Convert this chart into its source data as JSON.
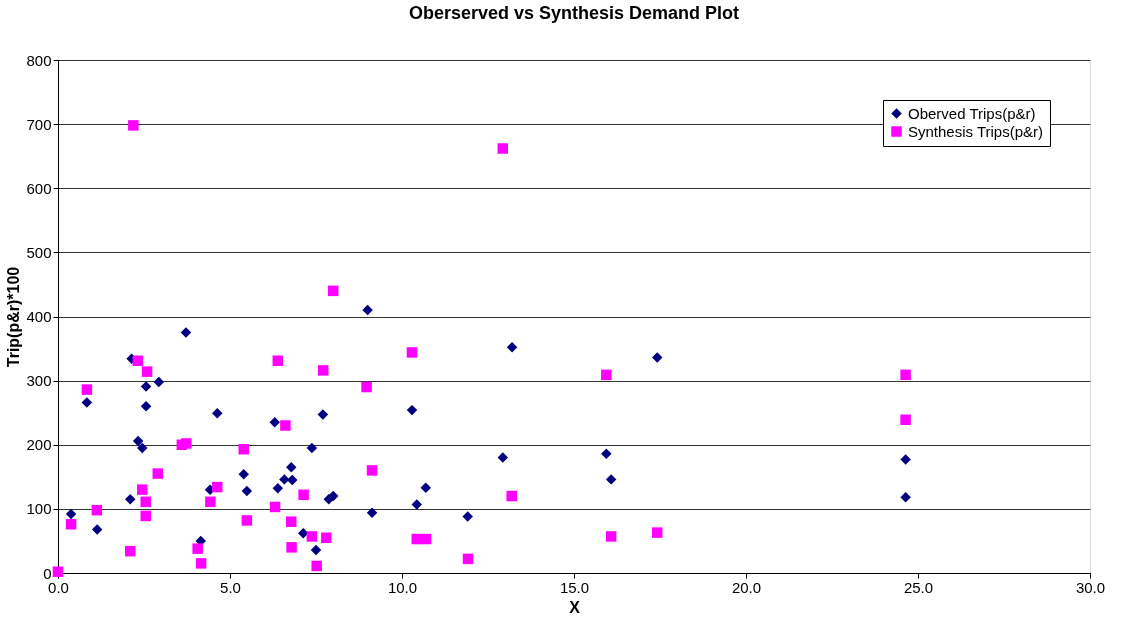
{
  "chart_data": {
    "type": "scatter",
    "title": "Oberserved vs Synthesis Demand Plot",
    "xlabel": "X",
    "ylabel": "Trip(p&r)*100",
    "xlim": [
      0,
      30
    ],
    "xticks": [
      {
        "value": 0,
        "label": "0.0"
      },
      {
        "value": 5,
        "label": "5.0"
      },
      {
        "value": 10,
        "label": "10.0"
      },
      {
        "value": 15,
        "label": "15.0"
      },
      {
        "value": 20,
        "label": "20.0"
      },
      {
        "value": 25,
        "label": "25.0"
      },
      {
        "value": 30,
        "label": "30.0"
      }
    ],
    "ylim": [
      0,
      800
    ],
    "yticks": [
      0,
      100,
      200,
      300,
      400,
      500,
      600,
      700,
      800
    ],
    "grid": "y",
    "legend": "top right",
    "series": [
      {
        "name": "Oberved Trips(p&r)",
        "color": "#000080",
        "marker": "diamond",
        "x": [
          0.38,
          0.84,
          1.14,
          2.1,
          2.14,
          2.56,
          2.56,
          2.93,
          2.33,
          2.45,
          3.72,
          4.63,
          4.42,
          5.4,
          5.49,
          4.15,
          9.0,
          6.3,
          7.7,
          7.38,
          6.78,
          6.58,
          6.81,
          6.39,
          7.87,
          8.0,
          7.13,
          7.5,
          9.13,
          10.29,
          10.69,
          10.43,
          13.2,
          12.93,
          11.91,
          17.42,
          15.94,
          16.08,
          24.64,
          24.64
        ],
        "values": [
          92,
          266,
          68,
          115,
          334,
          291,
          260,
          298,
          206,
          195,
          375,
          249,
          130,
          154,
          128,
          50,
          410,
          235,
          247,
          195,
          165,
          146,
          145,
          132,
          115,
          120,
          62,
          36,
          94,
          254,
          133,
          107,
          352,
          180,
          88,
          336,
          186,
          146,
          177,
          118
        ]
      },
      {
        "name": "Synthesis Trips(p&r)",
        "color": "#ff00ff",
        "marker": "square",
        "x": [
          0,
          0.38,
          0.84,
          1.13,
          2.1,
          2.32,
          2.59,
          2.45,
          2.55,
          2.55,
          2.9,
          3.6,
          3.73,
          4.63,
          4.43,
          4.06,
          4.16,
          5.4,
          5.49,
          2.19,
          6.39,
          7.71,
          8.97,
          10.29,
          6.61,
          9.13,
          7.14,
          6.31,
          6.78,
          6.79,
          7.38,
          7.8,
          7.52,
          10.43,
          10.7,
          8.0,
          13.19,
          11.92,
          12.93,
          15.94,
          16.08,
          17.42,
          24.64,
          24.64
        ],
        "values": [
          2,
          76,
          286,
          98,
          34,
          331,
          314,
          130,
          111,
          89,
          155,
          200,
          202,
          134,
          111,
          38,
          15,
          193,
          82,
          698,
          331,
          316,
          290,
          344,
          230,
          160,
          122,
          103,
          80,
          40,
          57,
          55,
          11,
          53,
          53,
          440,
          120,
          22,
          662,
          309,
          57,
          63,
          309,
          239
        ]
      }
    ]
  }
}
